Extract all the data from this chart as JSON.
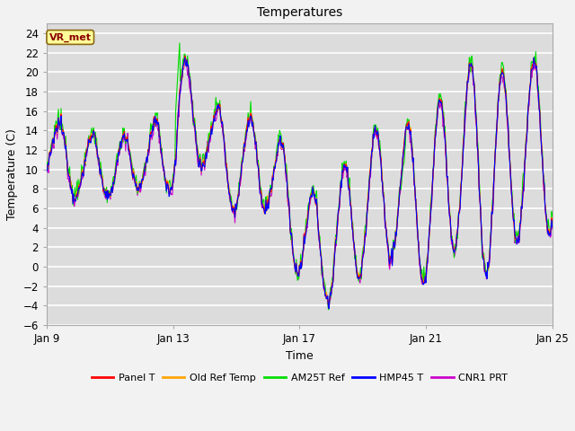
{
  "title": "Temperatures",
  "xlabel": "Time",
  "ylabel": "Temperature (C)",
  "ylim": [
    -6,
    25
  ],
  "yticks": [
    -6,
    -4,
    -2,
    0,
    2,
    4,
    6,
    8,
    10,
    12,
    14,
    16,
    18,
    20,
    22,
    24
  ],
  "annotation_text": "VR_met",
  "annotation_color": "#8B0000",
  "annotation_bg": "#FFFF99",
  "bg_color": "#DCDCDC",
  "plot_bg": "#DCDCDC",
  "series": [
    {
      "label": "Panel T",
      "color": "#FF0000",
      "lw": 0.8,
      "zorder": 5
    },
    {
      "label": "Old Ref Temp",
      "color": "#FFA500",
      "lw": 0.8,
      "zorder": 4
    },
    {
      "label": "AM25T Ref",
      "color": "#00DD00",
      "lw": 0.8,
      "zorder": 3
    },
    {
      "label": "HMP45 T",
      "color": "#0000FF",
      "lw": 0.8,
      "zorder": 6
    },
    {
      "label": "CNR1 PRT",
      "color": "#CC00CC",
      "lw": 0.8,
      "zorder": 2
    }
  ],
  "x_start": 0,
  "x_end": 384,
  "xtick_positions": [
    0,
    96,
    192,
    288,
    384
  ],
  "xtick_labels": [
    "Jan 9",
    "Jan 13",
    "Jan 17",
    "Jan 21",
    "Jan 25"
  ],
  "n_points": 769,
  "figsize": [
    6.4,
    4.8
  ],
  "dpi": 100
}
